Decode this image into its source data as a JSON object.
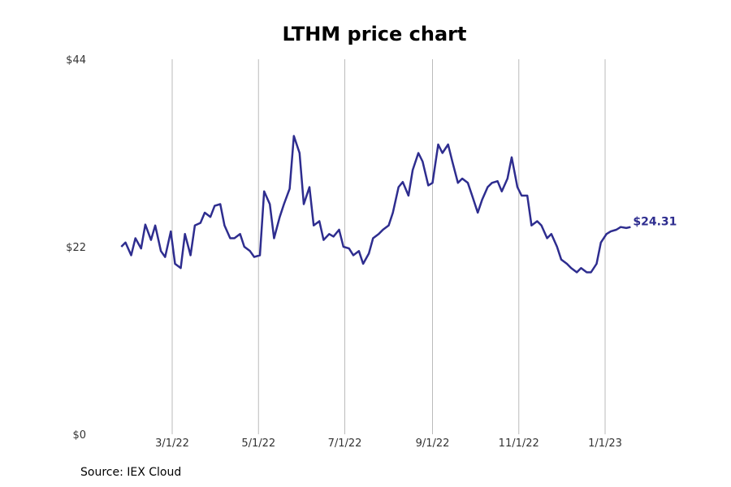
{
  "chart_data": {
    "type": "line",
    "title": "LTHM price chart",
    "source": "Source: IEX Cloud",
    "xlabel": "",
    "ylabel": "",
    "ylim": [
      0,
      44
    ],
    "y_ticks": [
      {
        "value": 0,
        "label": "$0"
      },
      {
        "value": 22,
        "label": "$22"
      },
      {
        "value": 44,
        "label": "$44"
      }
    ],
    "x_ticks": [
      {
        "date": "2022-03-01",
        "label": "3/1/22"
      },
      {
        "date": "2022-05-01",
        "label": "5/1/22"
      },
      {
        "date": "2022-07-01",
        "label": "7/1/22"
      },
      {
        "date": "2022-09-01",
        "label": "9/1/22"
      },
      {
        "date": "2022-11-01",
        "label": "11/1/22"
      },
      {
        "date": "2023-01-01",
        "label": "1/1/23"
      }
    ],
    "xlim": [
      "2022-01-21",
      "2023-03-10"
    ],
    "grid": "vertical",
    "line_color": "#2e2d8f",
    "end_label": "$24.31",
    "series": [
      {
        "x": [
          "2022-01-24",
          "2022-01-27",
          "2022-01-31",
          "2022-02-03",
          "2022-02-07",
          "2022-02-10",
          "2022-02-14",
          "2022-02-17",
          "2022-02-21",
          "2022-02-24",
          "2022-02-28",
          "2022-03-03",
          "2022-03-07",
          "2022-03-10",
          "2022-03-14",
          "2022-03-17",
          "2022-03-21",
          "2022-03-24",
          "2022-03-28",
          "2022-03-31",
          "2022-04-04",
          "2022-04-07",
          "2022-04-11",
          "2022-04-14",
          "2022-04-18",
          "2022-04-21",
          "2022-04-25",
          "2022-04-28",
          "2022-05-02",
          "2022-05-05",
          "2022-05-09",
          "2022-05-12",
          "2022-05-16",
          "2022-05-19",
          "2022-05-23",
          "2022-05-26",
          "2022-05-30",
          "2022-06-02",
          "2022-06-06",
          "2022-06-09",
          "2022-06-13",
          "2022-06-16",
          "2022-06-20",
          "2022-06-23",
          "2022-06-27",
          "2022-06-30",
          "2022-07-04",
          "2022-07-07",
          "2022-07-11",
          "2022-07-14",
          "2022-07-18",
          "2022-07-21",
          "2022-07-25",
          "2022-07-28",
          "2022-08-01",
          "2022-08-04",
          "2022-08-08",
          "2022-08-11",
          "2022-08-15",
          "2022-08-18",
          "2022-08-22",
          "2022-08-25",
          "2022-08-29",
          "2022-09-01",
          "2022-09-05",
          "2022-09-08",
          "2022-09-12",
          "2022-09-15",
          "2022-09-19",
          "2022-09-22",
          "2022-09-26",
          "2022-09-29",
          "2022-10-03",
          "2022-10-06",
          "2022-10-10",
          "2022-10-13",
          "2022-10-17",
          "2022-10-20",
          "2022-10-24",
          "2022-10-27",
          "2022-10-31",
          "2022-11-03",
          "2022-11-07",
          "2022-11-10",
          "2022-11-14",
          "2022-11-17",
          "2022-11-21",
          "2022-11-24",
          "2022-11-28",
          "2022-12-01",
          "2022-12-05",
          "2022-12-08",
          "2022-12-12",
          "2022-12-15",
          "2022-12-19",
          "2022-12-22",
          "2022-12-26",
          "2022-12-29",
          "2023-01-02",
          "2023-01-05",
          "2023-01-09",
          "2023-01-12",
          "2023-01-16",
          "2023-01-19"
        ],
        "y": [
          22.0,
          22.5,
          21.0,
          23.0,
          21.8,
          24.6,
          22.8,
          24.5,
          21.5,
          20.8,
          23.8,
          20.0,
          19.5,
          23.5,
          21.0,
          24.5,
          24.8,
          26.0,
          25.5,
          26.8,
          27.0,
          24.5,
          23.0,
          23.0,
          23.5,
          22.0,
          21.5,
          20.8,
          21.0,
          28.5,
          27.0,
          23.0,
          25.5,
          27.0,
          28.8,
          35.0,
          33.0,
          27.0,
          29.0,
          24.5,
          25.0,
          22.8,
          23.5,
          23.2,
          24.0,
          22.0,
          21.8,
          21.0,
          21.5,
          20.0,
          21.2,
          23.0,
          23.5,
          24.0,
          24.5,
          26.0,
          29.0,
          29.6,
          28.0,
          31.0,
          33.0,
          32.0,
          29.2,
          29.5,
          34.0,
          33.0,
          34.0,
          32.0,
          29.5,
          30.0,
          29.5,
          28.0,
          26.0,
          27.5,
          29.0,
          29.5,
          29.7,
          28.5,
          30.0,
          32.5,
          29.0,
          28.0,
          28.0,
          24.5,
          25.0,
          24.5,
          23.0,
          23.5,
          22.0,
          20.5,
          20.0,
          19.5,
          19.0,
          19.5,
          19.0,
          19.0,
          20.0,
          22.5,
          23.5,
          23.8,
          24.0,
          24.31,
          24.2,
          24.31
        ]
      }
    ]
  }
}
